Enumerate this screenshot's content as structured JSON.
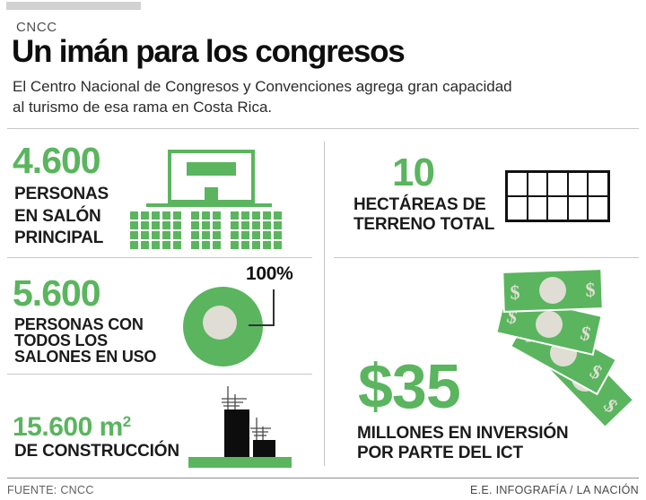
{
  "header": {
    "kicker": "CNCC",
    "title": "Un imán para los congresos",
    "subtitle_line1": "El Centro Nacional de Congresos y Convenciones agrega gran capacidad",
    "subtitle_line2": "al turismo de esa rama en Costa Rica."
  },
  "stats": {
    "salon_principal": {
      "value": "4.600",
      "lines": [
        "PERSONAS",
        "EN SALÓN",
        "PRINCIPAL"
      ]
    },
    "terreno": {
      "value": "10",
      "lines": [
        "HECTÁREAS DE",
        "TERRENO TOTAL"
      ]
    },
    "salones_en_uso": {
      "value": "5.600",
      "lines": [
        "PERSONAS CON",
        "TODOS  LOS",
        "SALONES EN USO"
      ],
      "donut_value": "100%"
    },
    "construccion": {
      "value": "15.600 m",
      "exponent": "2",
      "lines": [
        "DE CONSTRUCCIÓN"
      ]
    },
    "inversion": {
      "value": "$35",
      "lines": [
        "MILLONES EN INVERSIÓN",
        "POR PARTE DEL ICT"
      ]
    }
  },
  "icons": {
    "seats": {
      "rows": 4,
      "groups": [
        5,
        3,
        5
      ]
    },
    "land_grid": {
      "rows": 2,
      "cols": 5
    },
    "dollar": "$"
  },
  "chart_data": {
    "type": "pie",
    "labels": [
      "100%"
    ],
    "values": [
      100
    ],
    "note": "donut pictogram, all rooms in use"
  },
  "footer": {
    "source": "FUENTE: CNCC",
    "credit": "E.E. INFOGRAFÍA / LA NACIÓN"
  },
  "colors": {
    "green": "#5ab55e",
    "cream": "#dfddd4",
    "ink": "#111111",
    "divider": "#c7c7c7"
  }
}
